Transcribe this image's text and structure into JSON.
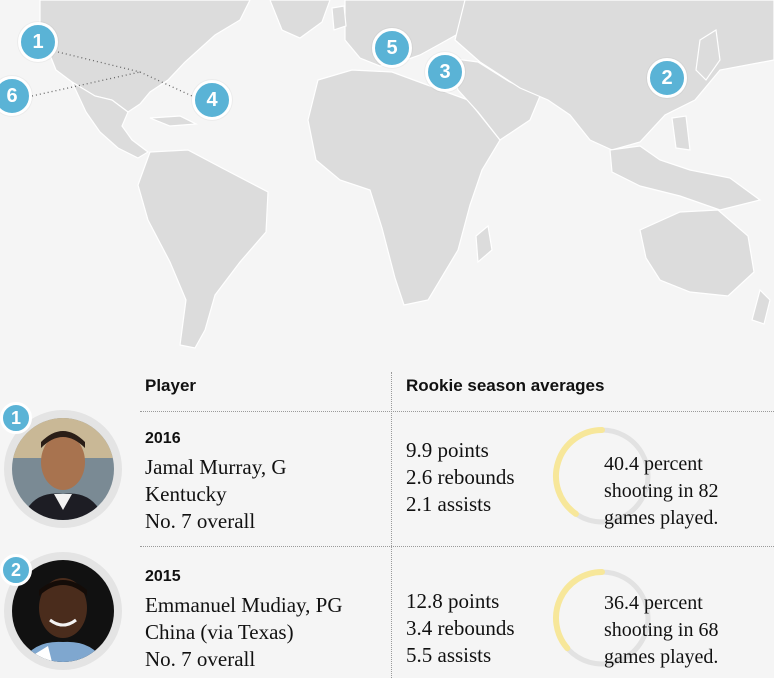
{
  "map": {
    "markers": [
      {
        "label": "1"
      },
      {
        "label": "2"
      },
      {
        "label": "3"
      },
      {
        "label": "4"
      },
      {
        "label": "5"
      },
      {
        "label": "6"
      }
    ],
    "colors": {
      "land": "#dcdcdc",
      "marker": "#5ab3d6",
      "background": "#f5f5f5"
    }
  },
  "table": {
    "player_header": "Player",
    "averages_header": "Rookie season averages",
    "rows": [
      {
        "badge": "1",
        "year": "2016",
        "name": "Jamal Murray, G",
        "origin": "Kentucky",
        "pick": "No. 7 overall",
        "points": "9.9 points",
        "rebounds": "2.6 rebounds",
        "assists": "2.1 assists",
        "shooting_line1": "40.4 percent",
        "shooting_line2": "shooting in 82",
        "shooting_line3": "games played.",
        "shooting_pct": 40.4
      },
      {
        "badge": "2",
        "year": "2015",
        "name": "Emmanuel Mudiay, PG",
        "origin": "China (via Texas)",
        "pick": "No. 7 overall",
        "points": "12.8 points",
        "rebounds": "3.4 rebounds",
        "assists": "5.5 assists",
        "shooting_line1": "36.4 percent",
        "shooting_line2": "shooting in 68",
        "shooting_line3": "games played.",
        "shooting_pct": 36.4
      }
    ],
    "ring_colors": {
      "fill": "#f7e79a",
      "track": "#e2e2e2"
    }
  }
}
